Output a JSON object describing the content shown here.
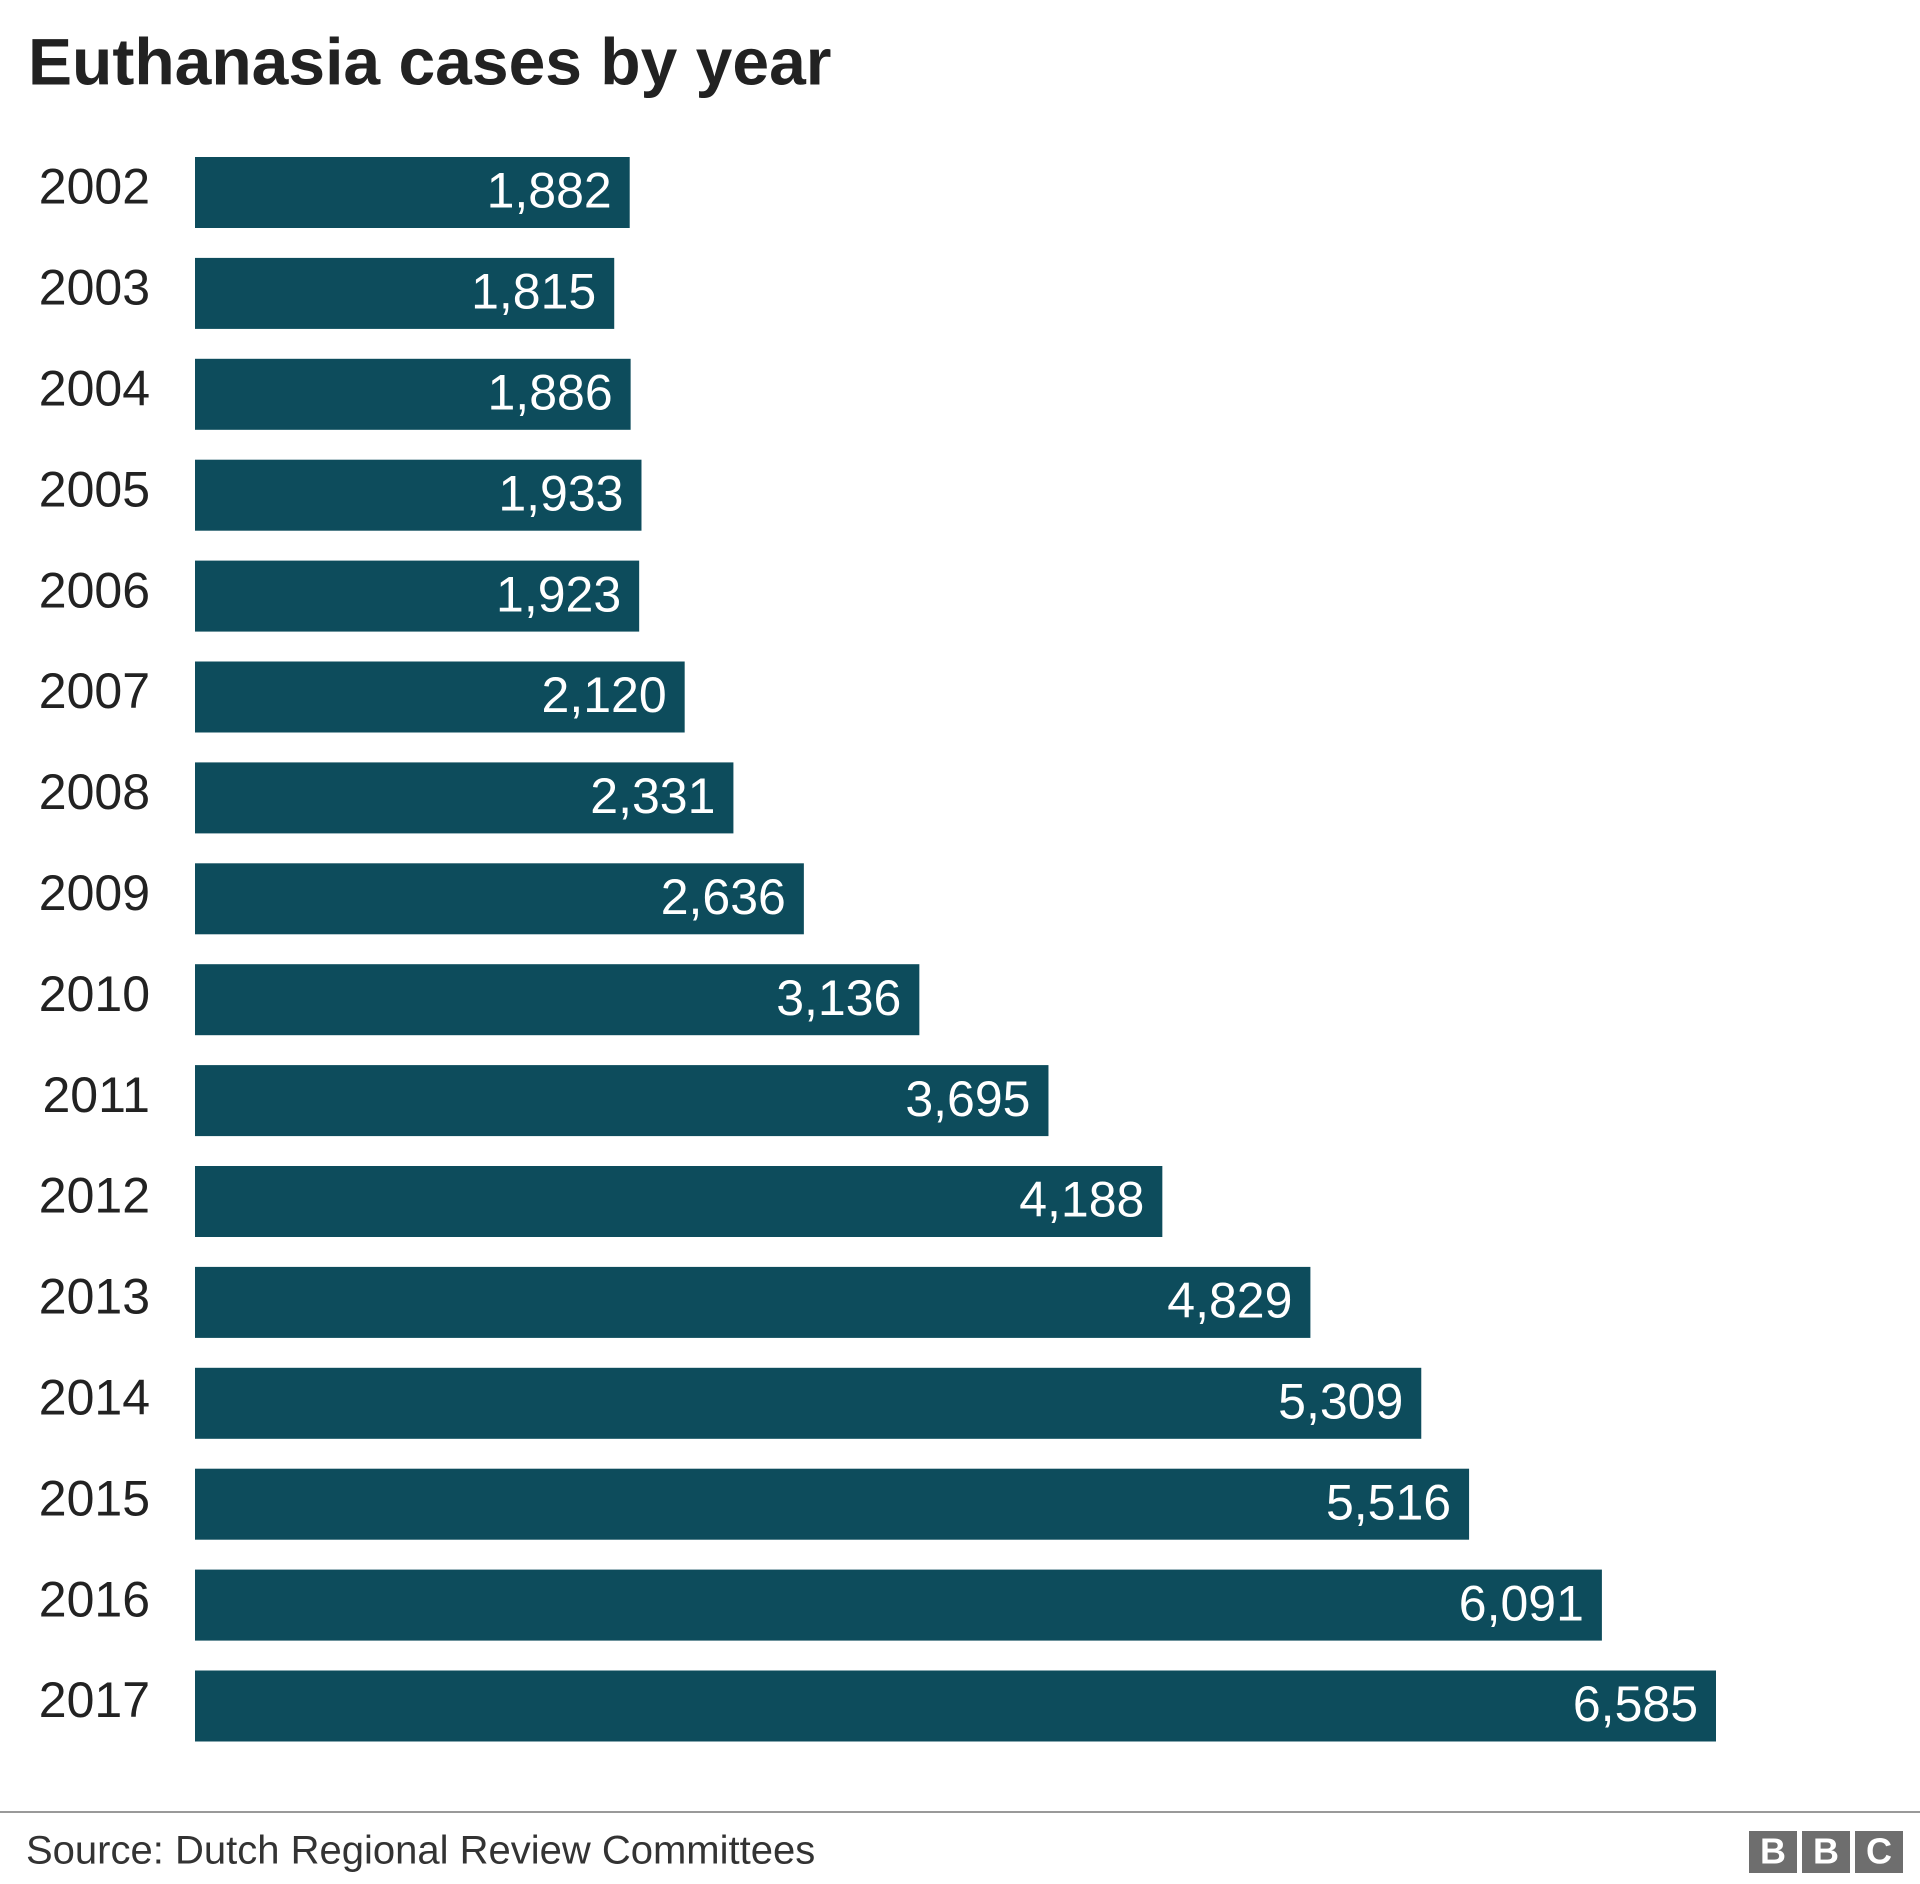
{
  "chart_data": {
    "type": "barh",
    "title": "Euthanasia cases by year",
    "categories": [
      "2002",
      "2003",
      "2004",
      "2005",
      "2006",
      "2007",
      "2008",
      "2009",
      "2010",
      "2011",
      "2012",
      "2013",
      "2014",
      "2015",
      "2016",
      "2017"
    ],
    "values": [
      1882,
      1815,
      1886,
      1933,
      1923,
      2120,
      2331,
      2636,
      3136,
      3695,
      4188,
      4829,
      5309,
      5516,
      6091,
      6585
    ],
    "value_labels": [
      "1,882",
      "1,815",
      "1,886",
      "1,933",
      "1,923",
      "2,120",
      "2,331",
      "2,636",
      "3,136",
      "3,695",
      "4,188",
      "4,829",
      "5,309",
      "5,516",
      "6,091",
      "6,585"
    ],
    "color": "#0d4c5c",
    "source": "Source: Dutch Regional Review Committees",
    "logo": [
      "B",
      "B",
      "C"
    ]
  }
}
